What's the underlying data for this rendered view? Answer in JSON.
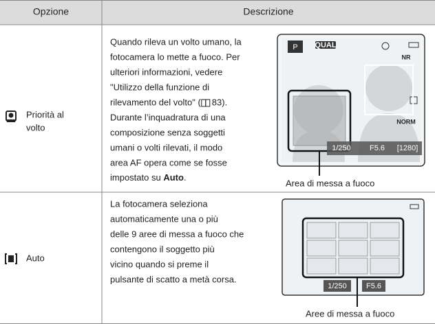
{
  "table": {
    "headers": [
      "Opzione",
      "Descrizione"
    ],
    "rows": [
      {
        "option": [
          "Priorità al",
          "volto"
        ],
        "description": [
          "Quando rileva un volto umano, la",
          "fotocamera lo mette a fuoco. Per",
          "ulteriori informazioni, vedere",
          "\"Utilizzo della funzione di"
        ],
        "ref": {
          "before": "rilevamento del volto\" (",
          "after": "83)."
        },
        "description_more": [
          "Durante l’inquadratura di una",
          "composizione senza soggetti",
          "umani o volti rilevati, il modo",
          "area AF opera come se fosse"
        ],
        "last": {
          "before": "impostato su ",
          "bold": "Auto",
          "after": "."
        },
        "screen": {
          "mode": "P",
          "quality": "QUAL",
          "nr": "NR",
          "norm": "NORM",
          "shutter": "1/250",
          "aperture": "F5.6",
          "shots": "[1280]"
        },
        "caption": "Area di messa a fuoco"
      },
      {
        "option": [
          "Auto"
        ],
        "description": [
          "La fotocamera seleziona",
          "automaticamente una o più",
          "delle 9 aree di messa a fuoco che",
          "contengono il soggetto più",
          "vicino quando si preme il",
          "pulsante di scatto a metà corsa."
        ],
        "screen": {
          "shutter": "1/250",
          "aperture": "F5.6"
        },
        "caption": "Aree di messa a fuoco"
      }
    ]
  }
}
